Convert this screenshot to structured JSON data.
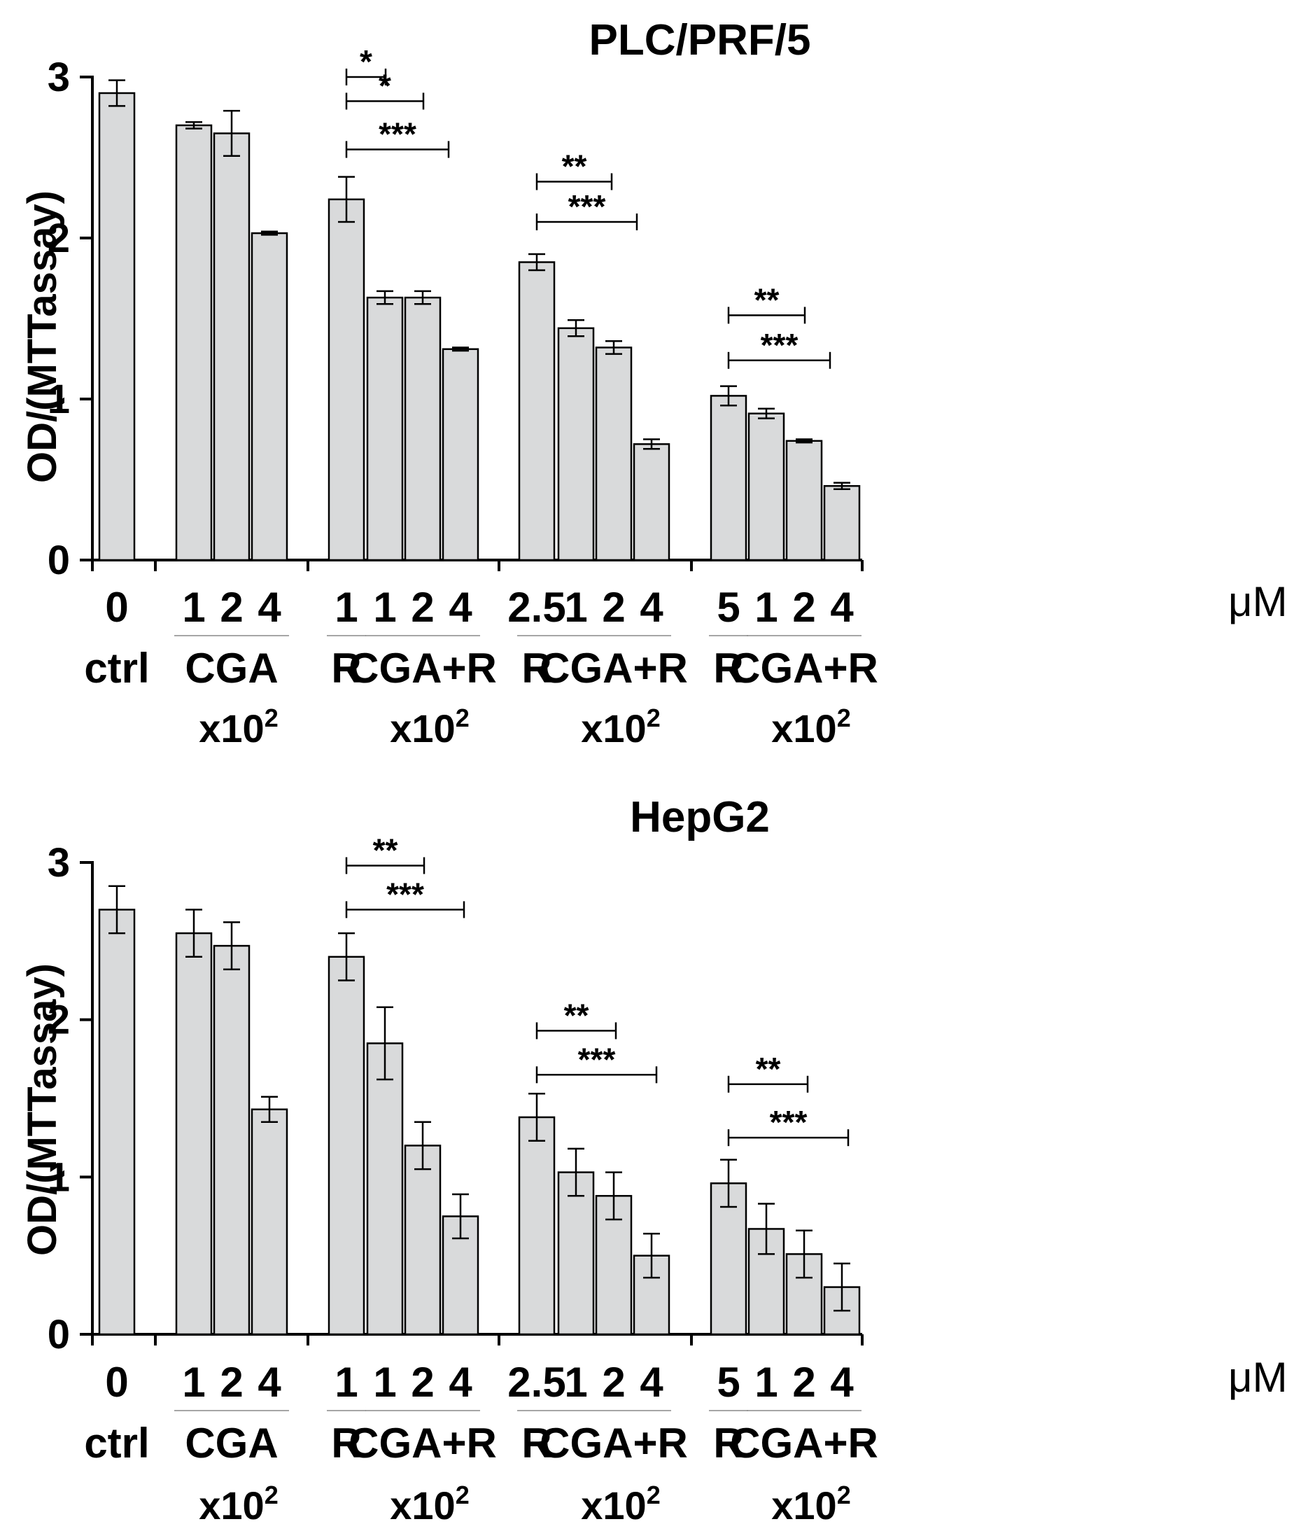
{
  "colors": {
    "bar_fill": "#d9dadb",
    "ink": "#000000"
  },
  "unit_label": "μM",
  "chart_data": [
    {
      "type": "bar",
      "title": "PLC/PRF/5",
      "ylabel": "OD/(MTTassay)",
      "ylim": [
        0,
        3
      ],
      "yticks": [
        "0",
        "1",
        "2",
        "3"
      ],
      "categories": [
        "0",
        "1",
        "2",
        "4",
        "1",
        "1",
        "2",
        "4",
        "2.5",
        "1",
        "2",
        "4",
        "5",
        "1",
        "2",
        "4"
      ],
      "values": [
        2.9,
        2.7,
        2.65,
        2.03,
        2.24,
        1.63,
        1.63,
        1.31,
        1.85,
        1.44,
        1.32,
        0.72,
        1.02,
        0.91,
        0.74,
        0.46
      ],
      "errors": [
        0.08,
        0.02,
        0.14,
        0.01,
        0.14,
        0.04,
        0.04,
        0.01,
        0.05,
        0.05,
        0.04,
        0.03,
        0.06,
        0.03,
        0.01,
        0.02
      ],
      "groups": [
        {
          "label": "ctrl",
          "multiplier": ""
        },
        {
          "label": "CGA",
          "multiplier": "x10",
          "exp": "2"
        },
        {
          "label": "R",
          "multiplier": ""
        },
        {
          "label": "CGA+R",
          "multiplier": "x10",
          "exp": "2"
        },
        {
          "label": "R",
          "multiplier": ""
        },
        {
          "label": "CGA+R",
          "multiplier": "x10",
          "exp": "2"
        },
        {
          "label": "R",
          "multiplier": ""
        },
        {
          "label": "CGA+R",
          "multiplier": "x10",
          "exp": "2"
        }
      ],
      "significance": [
        {
          "label": "*",
          "value": 3.0
        },
        {
          "label": "*",
          "value": 2.85
        },
        {
          "label": "***",
          "value": 2.55
        },
        {
          "label": "**",
          "value": 2.35
        },
        {
          "label": "***",
          "value": 2.1
        },
        {
          "label": "**",
          "value": 1.52
        },
        {
          "label": "***",
          "value": 1.24
        }
      ],
      "grid": false,
      "legend": "none"
    },
    {
      "type": "bar",
      "title": "HepG2",
      "ylabel": "OD/(MTTassay)",
      "ylim": [
        0,
        3
      ],
      "yticks": [
        "0",
        "1",
        "2",
        "3"
      ],
      "categories": [
        "0",
        "1",
        "2",
        "4",
        "1",
        "1",
        "2",
        "4",
        "2.5",
        "1",
        "2",
        "4",
        "5",
        "1",
        "2",
        "4"
      ],
      "values": [
        2.7,
        2.55,
        2.47,
        1.43,
        2.4,
        1.85,
        1.2,
        0.75,
        1.38,
        1.03,
        0.88,
        0.5,
        0.96,
        0.67,
        0.51,
        0.3
      ],
      "errors": [
        0.15,
        0.15,
        0.15,
        0.08,
        0.15,
        0.23,
        0.15,
        0.14,
        0.15,
        0.15,
        0.15,
        0.14,
        0.15,
        0.16,
        0.15,
        0.15
      ],
      "groups": [
        {
          "label": "ctrl",
          "multiplier": ""
        },
        {
          "label": "CGA",
          "multiplier": "x10",
          "exp": "2"
        },
        {
          "label": "R",
          "multiplier": ""
        },
        {
          "label": "CGA+R",
          "multiplier": "x10",
          "exp": "2"
        },
        {
          "label": "R",
          "multiplier": ""
        },
        {
          "label": "CGA+R",
          "multiplier": "x10",
          "exp": "2"
        },
        {
          "label": "R",
          "multiplier": ""
        },
        {
          "label": "CGA+R",
          "multiplier": "x10",
          "exp": "2"
        }
      ],
      "significance": [
        {
          "label": "**",
          "value": 2.98
        },
        {
          "label": "***",
          "value": 2.7
        },
        {
          "label": "**",
          "value": 1.93
        },
        {
          "label": "***",
          "value": 1.65
        },
        {
          "label": "**",
          "value": 1.59
        },
        {
          "label": "***",
          "value": 1.25
        }
      ],
      "grid": false,
      "legend": "none"
    }
  ]
}
